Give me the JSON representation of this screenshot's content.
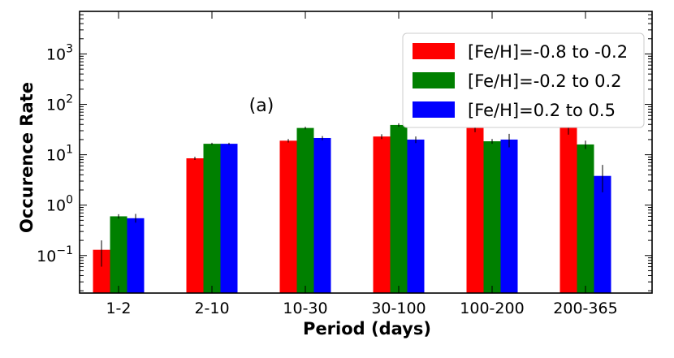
{
  "chart_data": {
    "type": "bar",
    "title": "",
    "annotation": "(a)",
    "xlabel": "Period (days)",
    "ylabel": "Occurence Rate",
    "yscale": "log",
    "ylim": [
      0.018,
      7000
    ],
    "y_ticks": [
      {
        "value": 0.1,
        "base": "10",
        "exp": "−1"
      },
      {
        "value": 1,
        "base": "10",
        "exp": "0"
      },
      {
        "value": 10,
        "base": "10",
        "exp": "1"
      },
      {
        "value": 100,
        "base": "10",
        "exp": "2"
      },
      {
        "value": 1000,
        "base": "10",
        "exp": "3"
      }
    ],
    "categories": [
      "1-2",
      "2-10",
      "10-30",
      "30-100",
      "100-200",
      "200-365"
    ],
    "series": [
      {
        "name": "[Fe/H]=-0.8 to -0.2",
        "color": "#ff0000",
        "values": [
          0.13,
          8.5,
          19,
          23,
          34,
          35
        ],
        "err_low": [
          0.07,
          0.6,
          1.5,
          2.5,
          6,
          10
        ],
        "err_high": [
          0.07,
          0.6,
          1.5,
          2.5,
          8,
          12
        ]
      },
      {
        "name": "[Fe/H]=-0.2 to 0.2",
        "color": "#008000",
        "values": [
          0.6,
          16.5,
          34,
          39,
          18.5,
          16
        ],
        "err_low": [
          0.06,
          0.8,
          2,
          3,
          2,
          3
        ],
        "err_high": [
          0.06,
          0.8,
          2,
          3,
          2,
          3
        ]
      },
      {
        "name": "[Fe/H]=0.2 to 0.5",
        "color": "#0000ff",
        "values": [
          0.55,
          16.5,
          21.5,
          20,
          20,
          3.8
        ],
        "err_low": [
          0.1,
          0.8,
          2,
          3,
          6,
          2
        ],
        "err_high": [
          0.12,
          0.8,
          2,
          3,
          6,
          2.5
        ]
      }
    ],
    "legend_position": "top-right"
  }
}
